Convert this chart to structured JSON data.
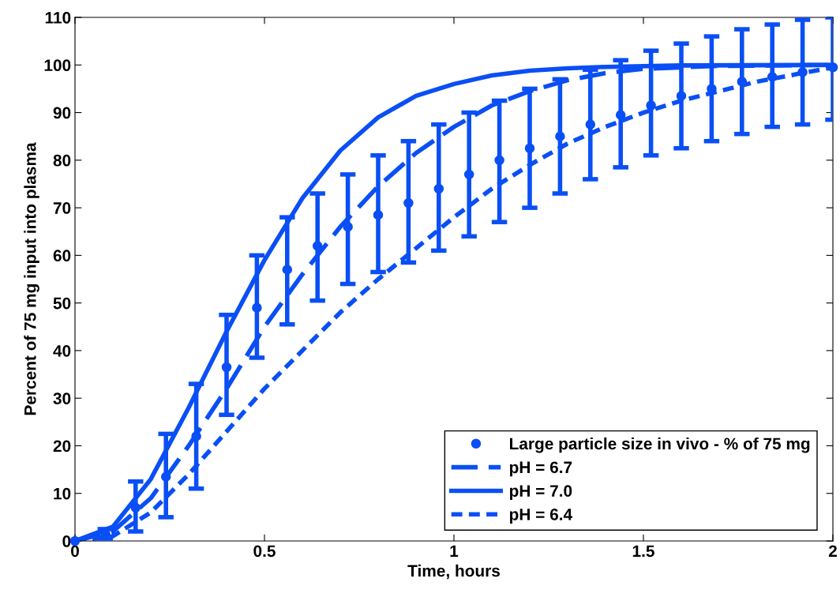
{
  "chart_data": {
    "type": "line",
    "xlabel": "Time, hours",
    "ylabel": "Percent of 75 mg input into plasma",
    "xlim": [
      0,
      2
    ],
    "ylim": [
      0,
      110
    ],
    "xticks": [
      0,
      0.5,
      1,
      1.5,
      2
    ],
    "yticks": [
      0,
      10,
      20,
      30,
      40,
      50,
      60,
      70,
      80,
      90,
      100,
      110
    ],
    "grid": false,
    "legend": "lower right",
    "series": [
      {
        "name": "Large particle size in vivo - % of 75 mg",
        "type": "scatter",
        "marker": "circle",
        "color": "#0a4ff5",
        "x": [
          0,
          0.08,
          0.16,
          0.24,
          0.32,
          0.4,
          0.48,
          0.56,
          0.64,
          0.72,
          0.8,
          0.88,
          0.96,
          1.04,
          1.12,
          1.2,
          1.28,
          1.36,
          1.44,
          1.52,
          1.6,
          1.68,
          1.76,
          1.84,
          1.92,
          2.0
        ],
        "values": [
          0,
          1.5,
          7,
          13.5,
          22,
          36.5,
          49,
          57,
          62,
          66,
          68.5,
          71,
          74,
          77,
          80,
          82.5,
          85,
          87.5,
          89.5,
          91.5,
          93.5,
          95,
          96.5,
          97.5,
          98.5,
          99.5
        ],
        "errors": [
          null,
          [
            0.5,
            2.5
          ],
          [
            2,
            12.5
          ],
          [
            5,
            22.5
          ],
          [
            11,
            33
          ],
          [
            26.5,
            47.5
          ],
          [
            38.5,
            60
          ],
          [
            45.5,
            68
          ],
          [
            50.5,
            73
          ],
          [
            54,
            77
          ],
          [
            56.5,
            81
          ],
          [
            58.5,
            84
          ],
          [
            61,
            87.5
          ],
          [
            64,
            90
          ],
          [
            67,
            92.5
          ],
          [
            70,
            95
          ],
          [
            73,
            97
          ],
          [
            76,
            99
          ],
          [
            78.5,
            101
          ],
          [
            81,
            103
          ],
          [
            82.5,
            104.5
          ],
          [
            84,
            106
          ],
          [
            85.5,
            107.5
          ],
          [
            87,
            108.5
          ],
          [
            87.5,
            109.5
          ],
          [
            88.5,
            110
          ]
        ]
      },
      {
        "name": "pH = 6.7",
        "line_style": "dashed",
        "color": "#0a4ff5",
        "x": [
          0,
          0.1,
          0.2,
          0.3,
          0.4,
          0.5,
          0.6,
          0.7,
          0.8,
          0.9,
          1.0,
          1.1,
          1.2,
          1.3,
          1.4,
          1.5,
          1.7,
          2.0
        ],
        "values": [
          0,
          2,
          9,
          20,
          32,
          45,
          56,
          66,
          74.5,
          81.5,
          87,
          91.5,
          94.5,
          96.8,
          98.3,
          99.2,
          99.8,
          100
        ]
      },
      {
        "name": "pH = 7.0",
        "line_style": "solid",
        "color": "#0a4ff5",
        "x": [
          0,
          0.1,
          0.2,
          0.3,
          0.4,
          0.5,
          0.6,
          0.7,
          0.8,
          0.9,
          1.0,
          1.1,
          1.2,
          1.3,
          1.4,
          1.6,
          2.0
        ],
        "values": [
          0,
          3,
          13,
          28,
          44,
          59,
          72,
          82,
          89,
          93.5,
          96,
          97.8,
          98.8,
          99.3,
          99.6,
          99.9,
          100
        ]
      },
      {
        "name": "pH = 6.4",
        "line_style": "dotted",
        "color": "#0a4ff5",
        "x": [
          0,
          0.1,
          0.2,
          0.3,
          0.4,
          0.5,
          0.6,
          0.7,
          0.8,
          0.9,
          1.0,
          1.1,
          1.2,
          1.3,
          1.4,
          1.5,
          1.6,
          1.7,
          1.8,
          1.9,
          2.0
        ],
        "values": [
          0,
          1,
          6,
          14,
          23,
          32,
          40,
          48,
          55,
          61.5,
          68,
          74,
          79,
          83.5,
          87,
          90,
          92.5,
          94.5,
          96.5,
          98,
          99.5
        ]
      }
    ]
  }
}
